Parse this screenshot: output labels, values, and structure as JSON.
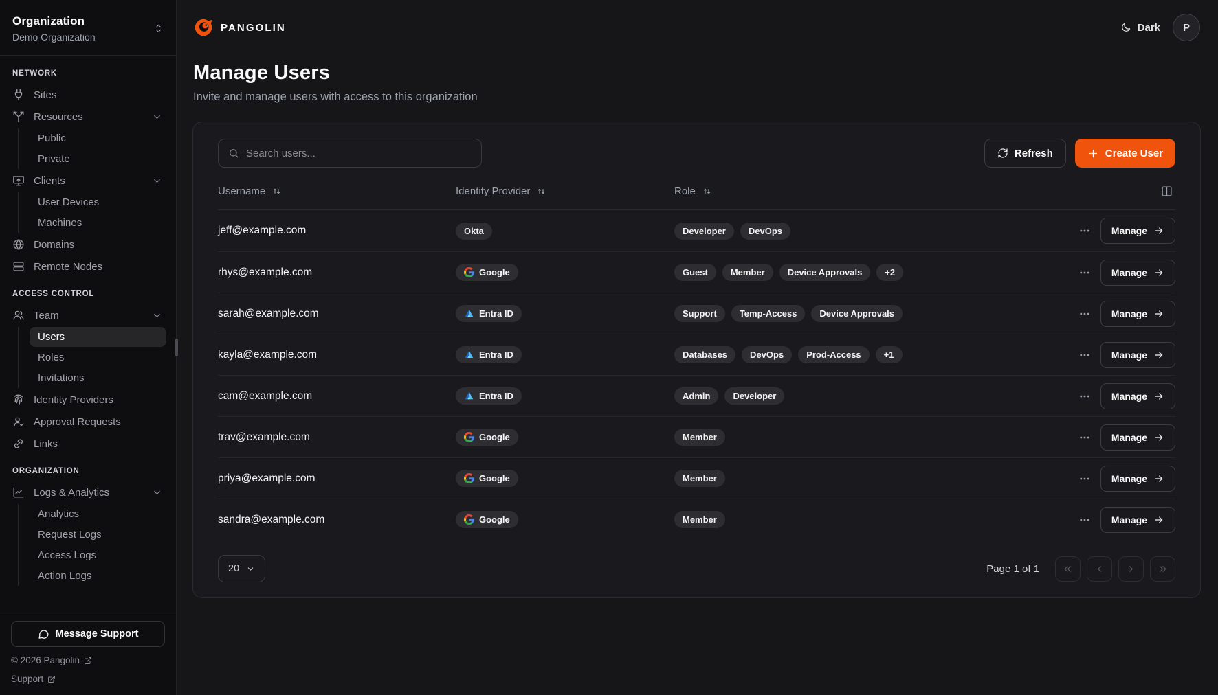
{
  "brand": {
    "name": "PANGOLIN",
    "accent_color": "#f0540c"
  },
  "org_switcher": {
    "label": "Organization",
    "value": "Demo Organization"
  },
  "sidebar": {
    "sections": [
      {
        "label": "NETWORK",
        "items": [
          {
            "label": "Sites",
            "icon": "plug"
          },
          {
            "label": "Resources",
            "icon": "split",
            "expanded": true,
            "children": [
              "Public",
              "Private"
            ]
          },
          {
            "label": "Clients",
            "icon": "screen-share",
            "expanded": true,
            "children": [
              "User Devices",
              "Machines"
            ]
          },
          {
            "label": "Domains",
            "icon": "globe"
          },
          {
            "label": "Remote Nodes",
            "icon": "server"
          }
        ]
      },
      {
        "label": "ACCESS CONTROL",
        "items": [
          {
            "label": "Team",
            "icon": "users",
            "expanded": true,
            "children": [
              "Users",
              "Roles",
              "Invitations"
            ],
            "active_child": "Users"
          },
          {
            "label": "Identity Providers",
            "icon": "fingerprint"
          },
          {
            "label": "Approval Requests",
            "icon": "user-check"
          },
          {
            "label": "Links",
            "icon": "link"
          }
        ]
      },
      {
        "label": "ORGANIZATION",
        "items": [
          {
            "label": "Logs & Analytics",
            "icon": "chart-line",
            "expanded": true,
            "children": [
              "Analytics",
              "Request Logs",
              "Access Logs",
              "Action Logs"
            ]
          }
        ]
      }
    ],
    "support_button": "Message Support",
    "footer_links": [
      "© 2026 Pangolin",
      "Support"
    ]
  },
  "topbar": {
    "theme_label": "Dark",
    "avatar_initial": "P"
  },
  "page": {
    "title": "Manage Users",
    "subtitle": "Invite and manage users with access to this organization"
  },
  "toolbar": {
    "search_placeholder": "Search users...",
    "refresh_label": "Refresh",
    "create_label": "Create User"
  },
  "table": {
    "columns": [
      "Username",
      "Identity Provider",
      "Role"
    ],
    "manage_label": "Manage",
    "rows": [
      {
        "username": "jeff@example.com",
        "provider": "Okta",
        "provider_icon": "okta",
        "roles": [
          "Developer",
          "DevOps"
        ],
        "overflow": ""
      },
      {
        "username": "rhys@example.com",
        "provider": "Google",
        "provider_icon": "google",
        "roles": [
          "Guest",
          "Member",
          "Device Approvals"
        ],
        "overflow": "+2"
      },
      {
        "username": "sarah@example.com",
        "provider": "Entra ID",
        "provider_icon": "entra",
        "roles": [
          "Support",
          "Temp-Access",
          "Device Approvals"
        ],
        "overflow": ""
      },
      {
        "username": "kayla@example.com",
        "provider": "Entra ID",
        "provider_icon": "entra",
        "roles": [
          "Databases",
          "DevOps",
          "Prod-Access"
        ],
        "overflow": "+1"
      },
      {
        "username": "cam@example.com",
        "provider": "Entra ID",
        "provider_icon": "entra",
        "roles": [
          "Admin",
          "Developer"
        ],
        "overflow": ""
      },
      {
        "username": "trav@example.com",
        "provider": "Google",
        "provider_icon": "google",
        "roles": [
          "Member"
        ],
        "overflow": ""
      },
      {
        "username": "priya@example.com",
        "provider": "Google",
        "provider_icon": "google",
        "roles": [
          "Member"
        ],
        "overflow": ""
      },
      {
        "username": "sandra@example.com",
        "provider": "Google",
        "provider_icon": "google",
        "roles": [
          "Member"
        ],
        "overflow": ""
      }
    ]
  },
  "pagination": {
    "page_size": "20",
    "status": "Page 1 of 1"
  }
}
